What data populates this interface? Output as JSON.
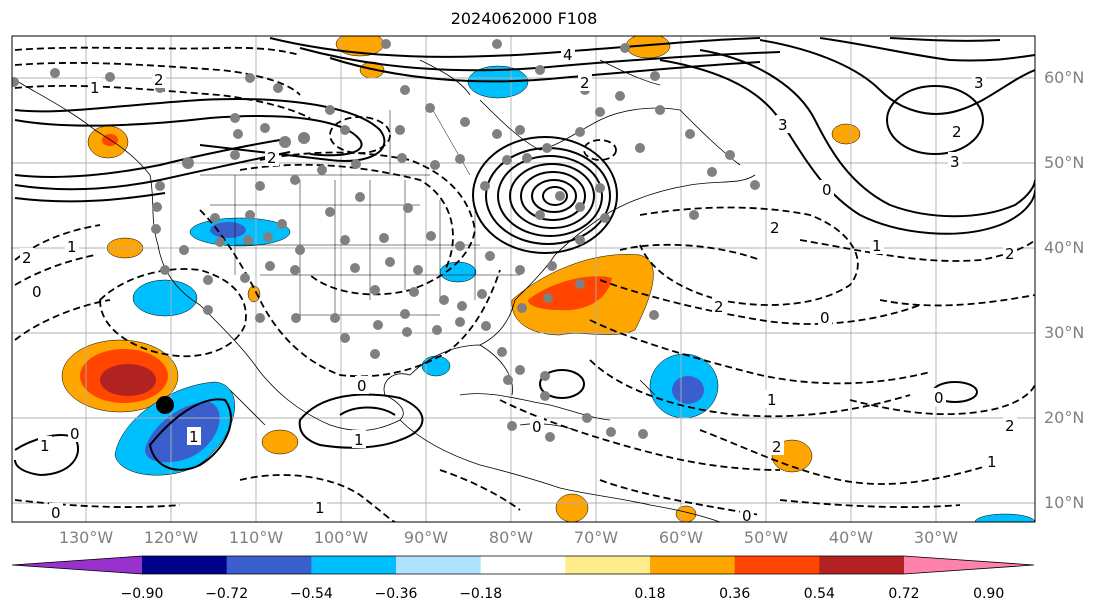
{
  "title": "2024062000 F108",
  "lon_labels": [
    "130°W",
    "120°W",
    "110°W",
    "100°W",
    "90°W",
    "80°W",
    "70°W",
    "60°W",
    "50°W",
    "40°W",
    "30°W"
  ],
  "lat_labels": [
    "60°N",
    "50°N",
    "40°N",
    "30°N",
    "20°N",
    "10°N"
  ],
  "colorbar": {
    "ticks": [
      "−0.90",
      "−0.72",
      "−0.54",
      "−0.36",
      "−0.18",
      "0.18",
      "0.36",
      "0.54",
      "0.72",
      "0.90"
    ],
    "colors": [
      "#9932cc",
      "#00008b",
      "#3a5fcd",
      "#00bfff",
      "#b0e2ff",
      "#ffffff",
      "#ffec8b",
      "#ffa500",
      "#ff4500",
      "#b22222",
      "#ff82ab"
    ]
  },
  "contour_labels": [
    "1",
    "2",
    "4",
    "3",
    "2",
    "3",
    "2",
    "3",
    "0",
    "1",
    "2",
    "0",
    "2",
    "1",
    "2",
    "0",
    "1",
    "1",
    "0",
    "2",
    "0",
    "1",
    "2",
    "1",
    "0",
    "0",
    "1",
    "0",
    "2",
    "1",
    "2",
    "0"
  ]
}
